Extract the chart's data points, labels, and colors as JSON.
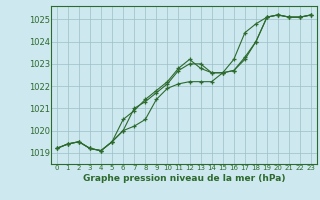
{
  "title": "Graphe pression niveau de la mer (hPa)",
  "bg_color": "#cde8ee",
  "grid_color": "#9bbfc7",
  "line_color": "#2d6a2d",
  "marker_color": "#2d6a2d",
  "xlim": [
    -0.5,
    23.5
  ],
  "ylim": [
    1018.5,
    1025.6
  ],
  "yticks": [
    1019,
    1020,
    1021,
    1022,
    1023,
    1024,
    1025
  ],
  "xticks": [
    0,
    1,
    2,
    3,
    4,
    5,
    6,
    7,
    8,
    9,
    10,
    11,
    12,
    13,
    14,
    15,
    16,
    17,
    18,
    19,
    20,
    21,
    22,
    23
  ],
  "series": [
    [
      1019.2,
      1019.4,
      1019.5,
      1019.2,
      1019.1,
      1019.5,
      1020.0,
      1021.0,
      1021.3,
      1021.7,
      1022.1,
      1022.7,
      1023.0,
      1023.0,
      1022.6,
      1022.6,
      1022.7,
      1023.2,
      1024.0,
      1025.1,
      1025.2,
      1025.1,
      1025.1,
      1025.2
    ],
    [
      1019.2,
      1019.4,
      1019.5,
      1019.2,
      1019.1,
      1019.5,
      1020.5,
      1020.9,
      1021.4,
      1021.8,
      1022.2,
      1022.8,
      1023.2,
      1022.8,
      1022.6,
      1022.6,
      1023.2,
      1024.4,
      1024.8,
      1025.1,
      1025.2,
      1025.1,
      1025.1,
      1025.2
    ],
    [
      1019.2,
      1019.4,
      1019.5,
      1019.2,
      1019.1,
      1019.5,
      1020.0,
      1020.2,
      1020.5,
      1021.4,
      1021.9,
      1022.1,
      1022.2,
      1022.2,
      1022.2,
      1022.6,
      1022.7,
      1023.3,
      1024.0,
      1025.1,
      1025.2,
      1025.1,
      1025.1,
      1025.2
    ]
  ],
  "xlabel_fontsize": 6.5,
  "ytick_fontsize": 6,
  "xtick_fontsize": 5
}
